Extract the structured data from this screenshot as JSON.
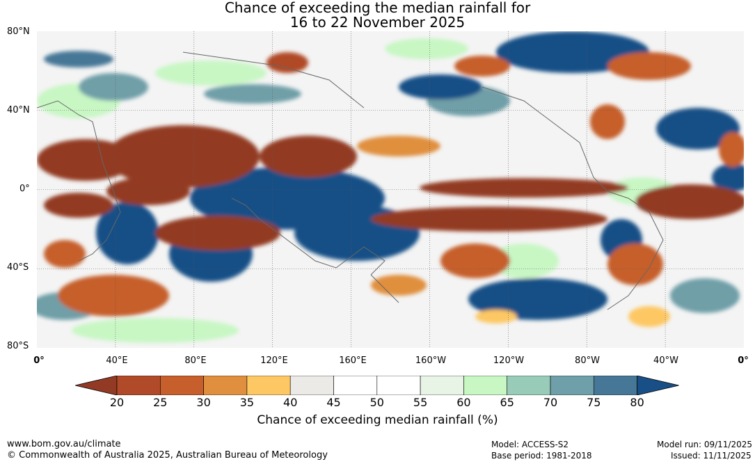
{
  "title": {
    "line1": "Chance of exceeding the median rainfall for",
    "line2": "16 to 22 November 2025"
  },
  "lat_labels": [
    "80°N",
    "40°N",
    "0°",
    "40°S",
    "80°S"
  ],
  "lon_labels": [
    "0°",
    "40°E",
    "80°E",
    "120°E",
    "160°E",
    "160°W",
    "120°W",
    "80°W",
    "40°W",
    "0°"
  ],
  "colorbar": {
    "ticks": [
      "20",
      "25",
      "30",
      "35",
      "40",
      "45",
      "50",
      "55",
      "60",
      "65",
      "70",
      "75",
      "80"
    ],
    "colors": [
      "#933a24",
      "#b04a28",
      "#c65f2c",
      "#e08f3e",
      "#fdc864",
      "#eceae6",
      "#ffffff",
      "#ffffff",
      "#e8f5e6",
      "#c8f7c4",
      "#99ccb8",
      "#6f9fa8",
      "#477796",
      "#174f86"
    ],
    "label": "Chance of exceeding median rainfall (%)"
  },
  "footer": {
    "website": "www.bom.gov.au/climate",
    "copyright": "© Commonwealth of Australia 2025, Australian Bureau of Meteorology",
    "model": "Model: ACCESS-S2",
    "base_period": "Base period: 1981-2018",
    "model_run": "Model run: 09/11/2025",
    "issued": "Issued: 11/11/2025"
  }
}
